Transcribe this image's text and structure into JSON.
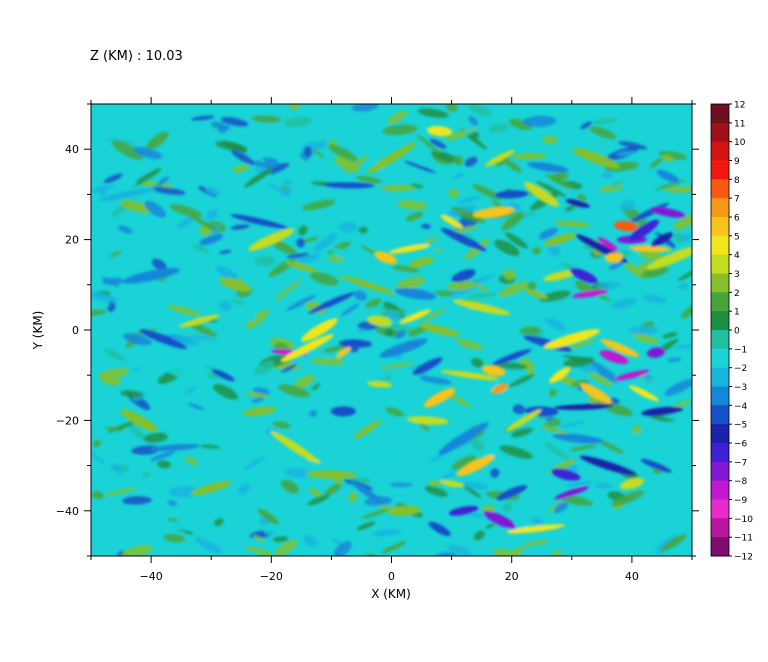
{
  "header": {
    "level_label": "Z (KM) : 10.03"
  },
  "chart_data": {
    "type": "heatmap",
    "xlabel": "X (KM)",
    "ylabel": "Y (KM)",
    "xlim": [
      -50,
      50
    ],
    "ylim": [
      -50,
      50
    ],
    "x_ticks": [
      -40,
      -20,
      0,
      20,
      40
    ],
    "y_ticks": [
      -40,
      -20,
      0,
      20,
      40
    ],
    "x_tick_labels": [
      "−40",
      "−20",
      "0",
      "20",
      "40"
    ],
    "y_tick_labels": [
      "−40",
      "−20",
      "0",
      "20",
      "40"
    ],
    "colorbar": {
      "range": [
        -12,
        12
      ],
      "levels": [
        12,
        11,
        10,
        9,
        8,
        7,
        6,
        5,
        4,
        3,
        2,
        1,
        0,
        -1,
        -2,
        -3,
        -4,
        -5,
        -6,
        -7,
        -8,
        -9,
        -10,
        -11,
        -12
      ],
      "labels": [
        "12",
        "11",
        "10",
        "9",
        "8",
        "7",
        "6",
        "5",
        "4",
        "3",
        "2",
        "1",
        "0",
        "−1",
        "−2",
        "−3",
        "−4",
        "−5",
        "−6",
        "−7",
        "−8",
        "−9",
        "−10",
        "−11",
        "−12"
      ],
      "colors": [
        "#6e0f22",
        "#a0101a",
        "#d11314",
        "#f2180f",
        "#fa5a10",
        "#f59a16",
        "#f6c41a",
        "#f0e61e",
        "#c3dc20",
        "#86bf2a",
        "#47a43a",
        "#1d8f45",
        "#1fbf9f",
        "#1ad3d6",
        "#19b4de",
        "#1686d8",
        "#1650c7",
        "#1b24a8",
        "#3e22d6",
        "#8218d6",
        "#c219d0",
        "#e82bcd",
        "#b8169f",
        "#7c0d6e",
        "#4a0a44"
      ]
    },
    "features": [
      {
        "x": -8,
        "y": -5,
        "v": 6
      },
      {
        "x": -6,
        "y": -3,
        "v": -4
      },
      {
        "x": -12,
        "y": 0,
        "v": 5
      },
      {
        "x": -17,
        "y": -5,
        "v": -8
      },
      {
        "x": -14,
        "y": -4,
        "v": 5
      },
      {
        "x": -2,
        "y": 2,
        "v": 4
      },
      {
        "x": 4,
        "y": 3,
        "v": 5
      },
      {
        "x": 8,
        "y": 0,
        "v": 3
      },
      {
        "x": 2,
        "y": -4,
        "v": -3
      },
      {
        "x": -4,
        "y": 10,
        "v": 3
      },
      {
        "x": 5,
        "y": 15,
        "v": 3
      },
      {
        "x": -1,
        "y": 16,
        "v": 6
      },
      {
        "x": 3,
        "y": 18,
        "v": 5
      },
      {
        "x": 12,
        "y": 20,
        "v": -4
      },
      {
        "x": 17,
        "y": 26,
        "v": 6
      },
      {
        "x": 10,
        "y": 24,
        "v": 5
      },
      {
        "x": 20,
        "y": 30,
        "v": -4
      },
      {
        "x": 25,
        "y": 30,
        "v": 4
      },
      {
        "x": -7,
        "y": 32,
        "v": -4
      },
      {
        "x": 0,
        "y": 38,
        "v": 3
      },
      {
        "x": 8,
        "y": 44,
        "v": 5
      },
      {
        "x": 18,
        "y": 38,
        "v": 4
      },
      {
        "x": 26,
        "y": 36,
        "v": -3
      },
      {
        "x": -20,
        "y": 20,
        "v": 4
      },
      {
        "x": -22,
        "y": 24,
        "v": -4
      },
      {
        "x": -30,
        "y": 20,
        "v": -3
      },
      {
        "x": -26,
        "y": 10,
        "v": 3
      },
      {
        "x": -32,
        "y": 2,
        "v": 4
      },
      {
        "x": -38,
        "y": -2,
        "v": -4
      },
      {
        "x": -40,
        "y": 12,
        "v": -3
      },
      {
        "x": -28,
        "y": -10,
        "v": -4
      },
      {
        "x": -22,
        "y": -18,
        "v": 3
      },
      {
        "x": -42,
        "y": -20,
        "v": 3
      },
      {
        "x": -36,
        "y": -26,
        "v": -3
      },
      {
        "x": -16,
        "y": -26,
        "v": 4
      },
      {
        "x": -8,
        "y": -18,
        "v": -4
      },
      {
        "x": -4,
        "y": -22,
        "v": 3
      },
      {
        "x": 6,
        "y": -20,
        "v": 4
      },
      {
        "x": 8,
        "y": -15,
        "v": 6
      },
      {
        "x": 13,
        "y": -10,
        "v": 4
      },
      {
        "x": 18,
        "y": -13,
        "v": 7
      },
      {
        "x": 17,
        "y": -9,
        "v": 6
      },
      {
        "x": 20,
        "y": -6,
        "v": -4
      },
      {
        "x": 26,
        "y": -3,
        "v": -4
      },
      {
        "x": 30,
        "y": -2,
        "v": 5
      },
      {
        "x": 24,
        "y": 8,
        "v": 3
      },
      {
        "x": 28,
        "y": 12,
        "v": 4
      },
      {
        "x": 32,
        "y": 12,
        "v": -6
      },
      {
        "x": 33,
        "y": 8,
        "v": -8
      },
      {
        "x": 35,
        "y": 18,
        "v": -5
      },
      {
        "x": 37,
        "y": 16,
        "v": 6
      },
      {
        "x": 36,
        "y": 19,
        "v": -8
      },
      {
        "x": 40,
        "y": 20,
        "v": -7
      },
      {
        "x": 42,
        "y": 22,
        "v": -6
      },
      {
        "x": 43,
        "y": 18,
        "v": 6
      },
      {
        "x": 45,
        "y": 20,
        "v": -5
      },
      {
        "x": 39,
        "y": 23,
        "v": 8
      },
      {
        "x": 43,
        "y": 26,
        "v": -4
      },
      {
        "x": 46,
        "y": 26,
        "v": -7
      },
      {
        "x": 47,
        "y": 16,
        "v": 4
      },
      {
        "x": 31,
        "y": 28,
        "v": -5
      },
      {
        "x": 28,
        "y": 20,
        "v": 3
      },
      {
        "x": 37,
        "y": -6,
        "v": -8
      },
      {
        "x": 40,
        "y": -10,
        "v": -8
      },
      {
        "x": 38,
        "y": -4,
        "v": 6
      },
      {
        "x": 44,
        "y": -5,
        "v": -7
      },
      {
        "x": 42,
        "y": -14,
        "v": 5
      },
      {
        "x": 45,
        "y": -18,
        "v": -5
      },
      {
        "x": 34,
        "y": -14,
        "v": 6
      },
      {
        "x": 32,
        "y": -17,
        "v": -5
      },
      {
        "x": 28,
        "y": -10,
        "v": 5
      },
      {
        "x": 25,
        "y": -18,
        "v": -4
      },
      {
        "x": 22,
        "y": -20,
        "v": 4
      },
      {
        "x": 31,
        "y": -24,
        "v": -3
      },
      {
        "x": 14,
        "y": -30,
        "v": 6
      },
      {
        "x": 10,
        "y": -34,
        "v": 4
      },
      {
        "x": 20,
        "y": -36,
        "v": -4
      },
      {
        "x": 29,
        "y": -32,
        "v": -6
      },
      {
        "x": 30,
        "y": -36,
        "v": -7
      },
      {
        "x": 36,
        "y": -30,
        "v": -5
      },
      {
        "x": 40,
        "y": -34,
        "v": 4
      },
      {
        "x": 44,
        "y": -30,
        "v": -4
      },
      {
        "x": 12,
        "y": -40,
        "v": -6
      },
      {
        "x": 18,
        "y": -42,
        "v": -7
      },
      {
        "x": 24,
        "y": -44,
        "v": 5
      },
      {
        "x": 8,
        "y": -44,
        "v": -4
      },
      {
        "x": 2,
        "y": -40,
        "v": 3
      },
      {
        "x": -4,
        "y": -36,
        "v": -3
      },
      {
        "x": -10,
        "y": -32,
        "v": 3
      },
      {
        "x": 12,
        "y": -24,
        "v": -3
      },
      {
        "x": -2,
        "y": -12,
        "v": 4
      },
      {
        "x": 6,
        "y": -8,
        "v": -4
      },
      {
        "x": 4,
        "y": 8,
        "v": -3
      },
      {
        "x": -10,
        "y": 6,
        "v": -4
      },
      {
        "x": 15,
        "y": 5,
        "v": 4
      },
      {
        "x": 12,
        "y": 12,
        "v": -4
      },
      {
        "x": -15,
        "y": 14,
        "v": 3
      },
      {
        "x": -30,
        "y": -35,
        "v": 3
      },
      {
        "x": 34,
        "y": 38,
        "v": 3
      },
      {
        "x": -44,
        "y": 30,
        "v": -2
      },
      {
        "x": 46,
        "y": 34,
        "v": -3
      }
    ]
  }
}
